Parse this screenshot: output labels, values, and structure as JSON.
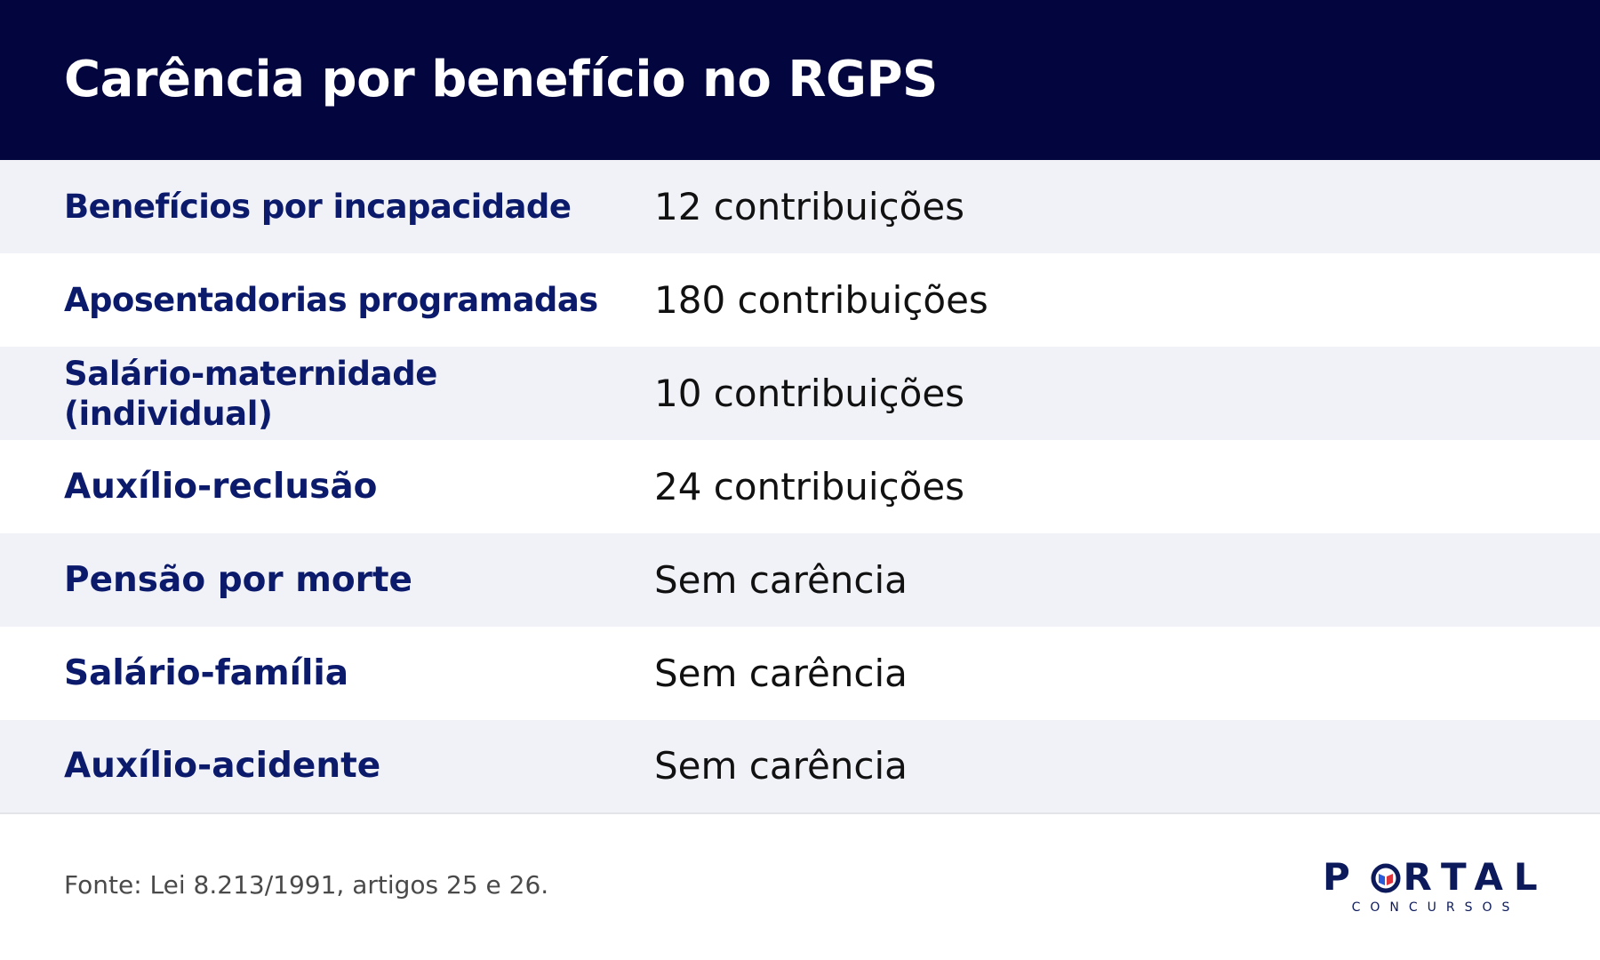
{
  "header": {
    "title": "Carência por benefício no RGPS"
  },
  "table": {
    "rows": [
      {
        "benefit": "Benefícios por incapacidade",
        "requirement": "12 contribuições"
      },
      {
        "benefit": "Aposentadorias programadas",
        "requirement": "180 contribuições"
      },
      {
        "benefit": "Salário-maternidade (individual)",
        "requirement": "10 contribuições"
      },
      {
        "benefit": "Auxílio-reclusão",
        "requirement": "24 contribuições"
      },
      {
        "benefit": "Pensão por morte",
        "requirement": "Sem carência"
      },
      {
        "benefit": "Salário-família",
        "requirement": "Sem carência"
      },
      {
        "benefit": "Auxílio-acidente",
        "requirement": "Sem carência"
      }
    ]
  },
  "footer": {
    "source": "Fonte: Lei 8.213/1991, artigos 25 e 26."
  },
  "logo": {
    "text": "PORTAL",
    "subtext": "CONCURSOS"
  },
  "colors": {
    "header_background": "#03053f",
    "label_text": "#0c1a6b",
    "row_alternate": "#f1f2f8"
  }
}
